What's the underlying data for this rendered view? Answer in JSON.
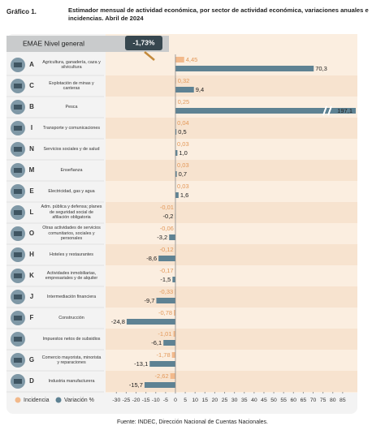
{
  "chart_data": {
    "type": "bar",
    "orientation": "horizontal",
    "figure_label": "Gráfico 1.",
    "title": "Estimador mensual de actividad económica, por sector de actividad económica, variaciones anuales e incidencias. Abril de 2024",
    "total": {
      "label": "EMAE Nivel general",
      "value": -1.73,
      "value_label": "-1,73%"
    },
    "codes": [
      "A",
      "C",
      "B",
      "I",
      "N",
      "M",
      "E",
      "L",
      "O",
      "H",
      "K",
      "J",
      "F",
      null,
      "G",
      "D"
    ],
    "categories": [
      "Agricultura, ganadería, caza y silvicultura",
      "Explotación de minas y canteras",
      "Pesca",
      "Transporte y comunicaciones",
      "Servicios sociales y de salud",
      "Enseñanza",
      "Electricidad, gas y agua",
      "Adm. pública y defensa; planes de seguridad social de afiliación obligatoria",
      "Otras actividades de servicios comunitarios, sociales y personales",
      "Hoteles y restaurantes",
      "Actividades inmobiliarias, empresariales y de alquiler",
      "Intermediación financiera",
      "Construcción",
      "Impuestos netos de subsidios",
      "Comercio mayorista, minorista y reparaciones",
      "Industria manufacturera"
    ],
    "series": [
      {
        "name": "Incidencia",
        "color": "#f2b98b",
        "values": [
          4.45,
          0.32,
          0.25,
          0.04,
          0.03,
          0.03,
          0.03,
          -0.01,
          -0.06,
          -0.12,
          -0.17,
          -0.33,
          -0.78,
          -1.01,
          -1.78,
          -2.62
        ],
        "value_labels": [
          "4,45",
          "0,32",
          "0,25",
          "0,04",
          "0,03",
          "0,03",
          "0,03",
          "-0,01",
          "-0,06",
          "-0,12",
          "-0,17",
          "-0,33",
          "-0,78",
          "-1,01",
          "-1,78",
          "-2,62"
        ]
      },
      {
        "name": "Variación %",
        "color": "#5e8293",
        "values": [
          70.3,
          9.4,
          197.1,
          0.5,
          1.0,
          0.7,
          1.6,
          -0.2,
          -3.2,
          -8.6,
          -1.5,
          -9.7,
          -24.8,
          -6.1,
          -13.1,
          -15.7
        ],
        "value_labels": [
          "70,3",
          "9,4",
          "197,1",
          "0,5",
          "1,0",
          "0,7",
          "1,6",
          "-0,2",
          "-3,2",
          "-8,6",
          "-1,5",
          "-9,7",
          "-24,8",
          "-6,1",
          "-13,1",
          "-15,7"
        ]
      }
    ],
    "xlim": [
      -35.5,
      92.5
    ],
    "xticks": [
      -30,
      -25,
      -20,
      -15,
      -10,
      -5,
      0,
      5,
      10,
      15,
      20,
      25,
      30,
      35,
      40,
      45,
      50,
      55,
      60,
      65,
      70,
      75,
      80,
      85
    ],
    "grid": false,
    "source": "Fuente: INDEC, Dirección Nacional de Cuentas Nacionales."
  }
}
